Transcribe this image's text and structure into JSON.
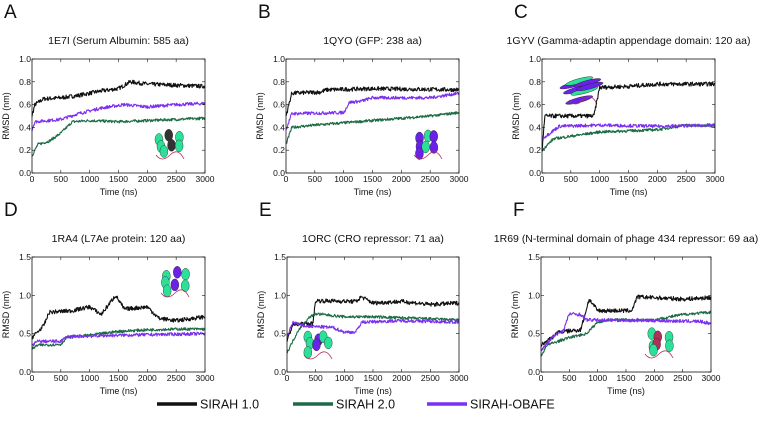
{
  "colors": {
    "SIRAH 1.0": "#111111",
    "SIRAH 2.0": "#1c6b45",
    "SIRAH-OBAFE": "#7b2ff0"
  },
  "legend": {
    "position": "bottom-center",
    "entries": [
      "SIRAH 1.0",
      "SIRAH 2.0",
      "SIRAH-OBAFE"
    ]
  },
  "chart_data": [
    {
      "type": "line",
      "letter": "A",
      "title": "1E7I (Serum Albumin: 585 aa)",
      "xlabel": "Time (ns)",
      "ylabel": "RMSD (nm)",
      "xlim": [
        0,
        3000
      ],
      "ylim": [
        0,
        1.0
      ],
      "xticks": [
        "0",
        "500",
        "1000",
        "1500",
        "2000",
        "2500",
        "3000"
      ],
      "yticks": [
        "0.0",
        "0.2",
        "0.4",
        "0.6",
        "0.8",
        "1.0"
      ],
      "series": [
        {
          "name": "SIRAH 1.0",
          "points": [
            [
              0,
              0.5
            ],
            [
              50,
              0.6
            ],
            [
              200,
              0.65
            ],
            [
              500,
              0.66
            ],
            [
              800,
              0.68
            ],
            [
              1200,
              0.72
            ],
            [
              1500,
              0.74
            ],
            [
              1700,
              0.8
            ],
            [
              2000,
              0.78
            ],
            [
              2500,
              0.77
            ],
            [
              3000,
              0.76
            ]
          ]
        },
        {
          "name": "SIRAH 2.0",
          "points": [
            [
              0,
              0.15
            ],
            [
              100,
              0.25
            ],
            [
              300,
              0.28
            ],
            [
              500,
              0.35
            ],
            [
              700,
              0.45
            ],
            [
              1000,
              0.46
            ],
            [
              1500,
              0.45
            ],
            [
              2000,
              0.46
            ],
            [
              2500,
              0.47
            ],
            [
              3000,
              0.48
            ]
          ]
        },
        {
          "name": "SIRAH-OBAFE",
          "points": [
            [
              0,
              0.38
            ],
            [
              50,
              0.45
            ],
            [
              500,
              0.47
            ],
            [
              800,
              0.52
            ],
            [
              1200,
              0.57
            ],
            [
              1600,
              0.6
            ],
            [
              2000,
              0.58
            ],
            [
              2500,
              0.6
            ],
            [
              3000,
              0.61
            ]
          ]
        }
      ]
    },
    {
      "type": "line",
      "letter": "B",
      "title": "1QYO (GFP: 238 aa)",
      "xlabel": "Time (ns)",
      "ylabel": "RMSD (nm)",
      "xlim": [
        0,
        3000
      ],
      "ylim": [
        0,
        1.0
      ],
      "xticks": [
        "0",
        "500",
        "1000",
        "1500",
        "2000",
        "2500",
        "3000"
      ],
      "yticks": [
        "0.0",
        "0.2",
        "0.4",
        "0.6",
        "0.8",
        "1.0"
      ],
      "series": [
        {
          "name": "SIRAH 1.0",
          "points": [
            [
              0,
              0.5
            ],
            [
              100,
              0.7
            ],
            [
              600,
              0.71
            ],
            [
              700,
              0.73
            ],
            [
              1500,
              0.74
            ],
            [
              3000,
              0.73
            ]
          ]
        },
        {
          "name": "SIRAH 2.0",
          "points": [
            [
              0,
              0.25
            ],
            [
              100,
              0.4
            ],
            [
              500,
              0.42
            ],
            [
              1000,
              0.44
            ],
            [
              1500,
              0.46
            ],
            [
              2000,
              0.48
            ],
            [
              2500,
              0.5
            ],
            [
              3000,
              0.53
            ]
          ]
        },
        {
          "name": "SIRAH-OBAFE",
          "points": [
            [
              0,
              0.38
            ],
            [
              100,
              0.52
            ],
            [
              1000,
              0.53
            ],
            [
              1100,
              0.62
            ],
            [
              1300,
              0.63
            ],
            [
              1500,
              0.66
            ],
            [
              2500,
              0.66
            ],
            [
              3000,
              0.7
            ]
          ]
        }
      ]
    },
    {
      "type": "line",
      "letter": "C",
      "title": "1GYV (Gamma-adaptin appendage domain: 120 aa)",
      "xlabel": "Time (ns)",
      "ylabel": "RMSD (nm)",
      "xlim": [
        0,
        3000
      ],
      "ylim": [
        0,
        1.0
      ],
      "xticks": [
        "0",
        "500",
        "1000",
        "1500",
        "2000",
        "2500",
        "3000"
      ],
      "yticks": [
        "0.0",
        "0.2",
        "0.4",
        "0.6",
        "0.8",
        "1.0"
      ],
      "series": [
        {
          "name": "SIRAH 1.0",
          "points": [
            [
              0,
              0.2
            ],
            [
              50,
              0.5
            ],
            [
              900,
              0.5
            ],
            [
              1000,
              0.75
            ],
            [
              1500,
              0.76
            ],
            [
              2000,
              0.78
            ],
            [
              3000,
              0.78
            ]
          ]
        },
        {
          "name": "SIRAH 2.0",
          "points": [
            [
              0,
              0.2
            ],
            [
              200,
              0.3
            ],
            [
              1000,
              0.36
            ],
            [
              1500,
              0.37
            ],
            [
              2000,
              0.38
            ],
            [
              2500,
              0.42
            ],
            [
              3000,
              0.41
            ]
          ]
        },
        {
          "name": "SIRAH-OBAFE",
          "points": [
            [
              0,
              0.3
            ],
            [
              300,
              0.41
            ],
            [
              1000,
              0.42
            ],
            [
              2000,
              0.41
            ],
            [
              3000,
              0.42
            ]
          ]
        }
      ]
    },
    {
      "type": "line",
      "letter": "D",
      "title": "1RA4 (L7Ae protein: 120 aa)",
      "xlabel": "Time (ns)",
      "ylabel": "RMSD (nm)",
      "xlim": [
        0,
        3000
      ],
      "ylim": [
        0,
        1.5
      ],
      "xticks": [
        "0",
        "500",
        "1000",
        "1500",
        "2000",
        "2500",
        "3000"
      ],
      "yticks": [
        "0.0",
        "0.5",
        "1.0",
        "1.5"
      ],
      "series": [
        {
          "name": "SIRAH 1.0",
          "points": [
            [
              0,
              0.45
            ],
            [
              200,
              0.6
            ],
            [
              300,
              0.78
            ],
            [
              700,
              0.8
            ],
            [
              1000,
              0.85
            ],
            [
              1200,
              0.75
            ],
            [
              1450,
              1.0
            ],
            [
              1600,
              0.82
            ],
            [
              2000,
              0.85
            ],
            [
              2200,
              0.7
            ],
            [
              2500,
              0.67
            ],
            [
              3000,
              0.72
            ]
          ]
        },
        {
          "name": "SIRAH 2.0",
          "points": [
            [
              0,
              0.3
            ],
            [
              100,
              0.35
            ],
            [
              500,
              0.36
            ],
            [
              600,
              0.45
            ],
            [
              1000,
              0.48
            ],
            [
              1500,
              0.53
            ],
            [
              2000,
              0.55
            ],
            [
              2500,
              0.56
            ],
            [
              3000,
              0.56
            ]
          ]
        },
        {
          "name": "SIRAH-OBAFE",
          "points": [
            [
              0,
              0.35
            ],
            [
              100,
              0.4
            ],
            [
              500,
              0.4
            ],
            [
              600,
              0.46
            ],
            [
              1500,
              0.48
            ],
            [
              3000,
              0.5
            ]
          ]
        }
      ]
    },
    {
      "type": "line",
      "letter": "E",
      "title": "1ORC (CRO repressor: 71 aa)",
      "xlabel": "Time (ns)",
      "ylabel": "RMSD (nm)",
      "xlim": [
        0,
        3000
      ],
      "ylim": [
        0,
        1.5
      ],
      "xticks": [
        "0",
        "500",
        "1000",
        "1500",
        "2000",
        "2500",
        "3000"
      ],
      "yticks": [
        "0.0",
        "0.5",
        "1.0",
        "1.5"
      ],
      "series": [
        {
          "name": "SIRAH 1.0",
          "points": [
            [
              0,
              0.4
            ],
            [
              100,
              0.62
            ],
            [
              450,
              0.63
            ],
            [
              500,
              0.93
            ],
            [
              1200,
              0.92
            ],
            [
              1300,
              0.98
            ],
            [
              1500,
              0.9
            ],
            [
              2000,
              0.92
            ],
            [
              2500,
              0.88
            ],
            [
              3000,
              0.9
            ]
          ]
        },
        {
          "name": "SIRAH 2.0",
          "points": [
            [
              0,
              0.25
            ],
            [
              200,
              0.55
            ],
            [
              400,
              0.72
            ],
            [
              500,
              0.76
            ],
            [
              1000,
              0.72
            ],
            [
              1500,
              0.72
            ],
            [
              3000,
              0.68
            ]
          ]
        },
        {
          "name": "SIRAH-OBAFE",
          "points": [
            [
              0,
              0.45
            ],
            [
              100,
              0.65
            ],
            [
              300,
              0.6
            ],
            [
              800,
              0.58
            ],
            [
              1000,
              0.52
            ],
            [
              1200,
              0.52
            ],
            [
              1300,
              0.65
            ],
            [
              2000,
              0.67
            ],
            [
              3000,
              0.65
            ]
          ]
        }
      ]
    },
    {
      "type": "line",
      "letter": "F",
      "title": "1R69 (N-terminal domain of phage 434 repressor: 69 aa)",
      "xlabel": "Time (ns)",
      "ylabel": "RMSD (nm)",
      "xlim": [
        0,
        3000
      ],
      "ylim": [
        0,
        1.5
      ],
      "xticks": [
        "0",
        "500",
        "1000",
        "1500",
        "2000",
        "2500",
        "3000"
      ],
      "yticks": [
        "0.0",
        "0.5",
        "1.0",
        "1.5"
      ],
      "series": [
        {
          "name": "SIRAH 1.0",
          "points": [
            [
              0,
              0.35
            ],
            [
              200,
              0.45
            ],
            [
              300,
              0.52
            ],
            [
              700,
              0.55
            ],
            [
              850,
              0.95
            ],
            [
              1000,
              0.8
            ],
            [
              1600,
              0.8
            ],
            [
              1700,
              0.98
            ],
            [
              2000,
              0.97
            ],
            [
              2500,
              0.95
            ],
            [
              3000,
              0.97
            ]
          ]
        },
        {
          "name": "SIRAH 2.0",
          "points": [
            [
              0,
              0.2
            ],
            [
              100,
              0.35
            ],
            [
              500,
              0.45
            ],
            [
              800,
              0.5
            ],
            [
              1000,
              0.65
            ],
            [
              1200,
              0.68
            ],
            [
              2000,
              0.68
            ],
            [
              2500,
              0.75
            ],
            [
              3000,
              0.78
            ]
          ]
        },
        {
          "name": "SIRAH-OBAFE",
          "points": [
            [
              0,
              0.28
            ],
            [
              200,
              0.45
            ],
            [
              400,
              0.55
            ],
            [
              500,
              0.76
            ],
            [
              700,
              0.75
            ],
            [
              800,
              0.68
            ],
            [
              2000,
              0.67
            ],
            [
              2800,
              0.66
            ],
            [
              3000,
              0.63
            ]
          ]
        }
      ]
    }
  ]
}
